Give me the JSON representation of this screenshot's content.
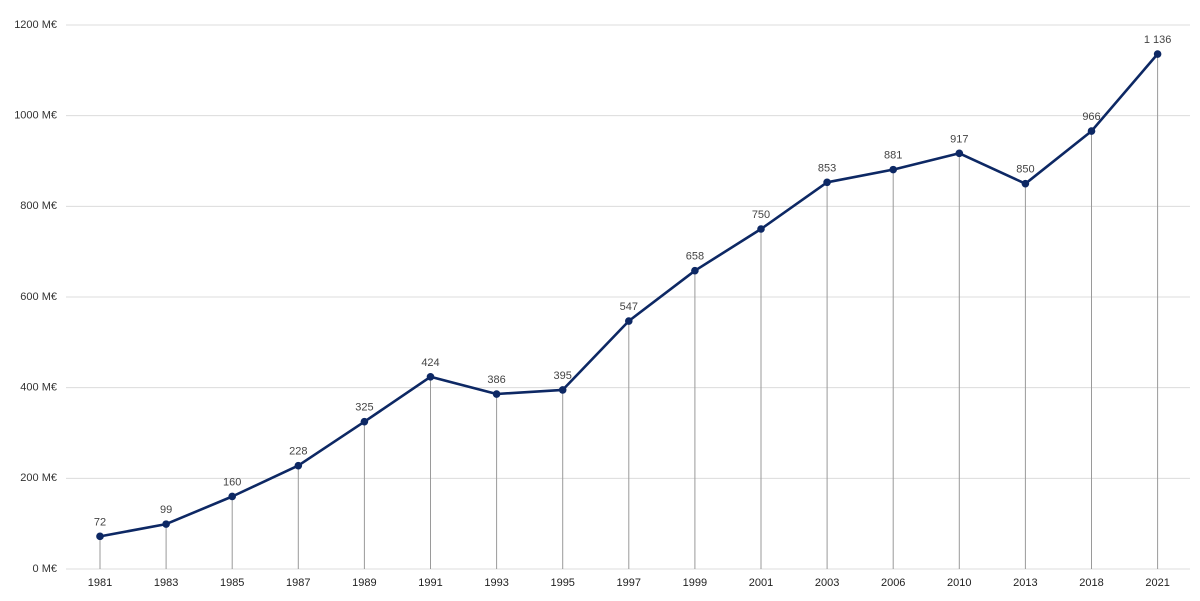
{
  "chart_data": {
    "type": "line",
    "categories": [
      "1981",
      "1983",
      "1985",
      "1987",
      "1989",
      "1991",
      "1993",
      "1995",
      "1997",
      "1999",
      "2001",
      "2003",
      "2006",
      "2010",
      "2013",
      "2018",
      "2021"
    ],
    "values": [
      72,
      99,
      160,
      228,
      325,
      424,
      386,
      395,
      547,
      658,
      750,
      853,
      881,
      917,
      850,
      966,
      1136
    ],
    "data_labels": [
      "72",
      "99",
      "160",
      "228",
      "325",
      "424",
      "386",
      "395",
      "547",
      "658",
      "750",
      "853",
      "881",
      "917",
      "850",
      "966",
      "1 136"
    ],
    "y_ticks": [
      0,
      200,
      400,
      600,
      800,
      1000,
      1200
    ],
    "y_tick_labels": [
      "0 M€",
      "200 M€",
      "400 M€",
      "600 M€",
      "800 M€",
      "1000 M€",
      "1200 M€"
    ],
    "ylim": [
      0,
      1200
    ],
    "title": "",
    "xlabel": "",
    "ylabel": "",
    "grid": true,
    "drop_lines": true,
    "markers": true,
    "legend": false,
    "colors": {
      "line": "#0d2864",
      "marker": "#0d2864",
      "grid": "#dcdcdc",
      "drop_line": "#9a9a9a"
    }
  }
}
